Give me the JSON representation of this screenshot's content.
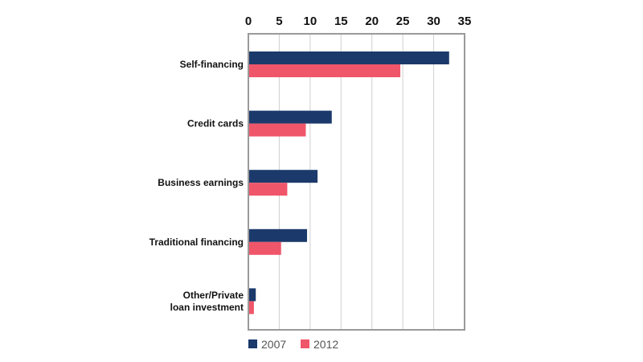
{
  "chart_data": {
    "type": "bar",
    "orientation": "horizontal",
    "categories": [
      [
        "Self-financing"
      ],
      [
        "Credit cards"
      ],
      [
        "Business earnings"
      ],
      [
        "Traditional financing"
      ],
      [
        "Other/Private",
        "loan investment"
      ]
    ],
    "series": [
      {
        "name": "2007",
        "color": "#1b3a6b",
        "values": [
          32.5,
          13.5,
          11.2,
          9.5,
          1.2
        ]
      },
      {
        "name": "2012",
        "color": "#f0566a",
        "values": [
          24.6,
          9.3,
          6.3,
          5.3,
          0.9
        ]
      }
    ],
    "xlim": [
      0,
      35
    ],
    "xticks": [
      0,
      5,
      10,
      15,
      20,
      25,
      30,
      35
    ],
    "title": "",
    "xlabel": "",
    "ylabel": "",
    "grid": true,
    "legend_position": "bottom-left"
  }
}
